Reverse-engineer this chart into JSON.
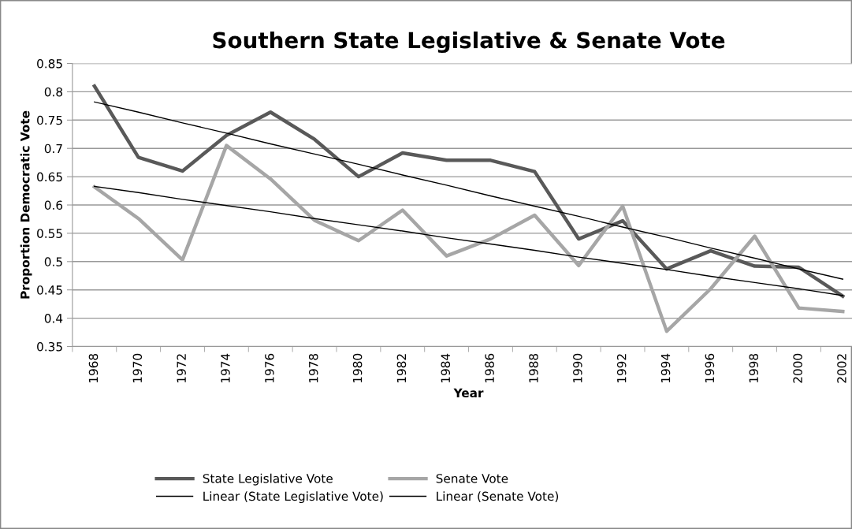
{
  "chart_data": {
    "type": "line",
    "title": "Southern State Legislative & Senate Vote",
    "xlabel": "Year",
    "ylabel": "Proportion Democratic Vote",
    "categories": [
      "1968",
      "1970",
      "1972",
      "1974",
      "1976",
      "1978",
      "1980",
      "1982",
      "1984",
      "1986",
      "1988",
      "1990",
      "1992",
      "1994",
      "1996",
      "1998",
      "2000",
      "2002"
    ],
    "series": [
      {
        "name": "State Legislative Vote",
        "color": "#595959",
        "values": [
          0.81,
          0.684,
          0.66,
          0.723,
          0.764,
          0.716,
          0.65,
          0.692,
          0.679,
          0.679,
          0.659,
          0.54,
          0.572,
          0.487,
          0.519,
          0.492,
          0.49,
          0.439
        ]
      },
      {
        "name": "Senate Vote",
        "color": "#a6a6a6",
        "values": [
          0.632,
          0.576,
          0.503,
          0.705,
          0.646,
          0.573,
          0.537,
          0.591,
          0.51,
          0.54,
          0.582,
          0.493,
          0.598,
          0.377,
          0.452,
          0.545,
          0.418,
          0.412
        ]
      },
      {
        "name": "Linear (State Legislative Vote)",
        "color": "#000000",
        "values": [
          0.782,
          0.764,
          0.745,
          0.727,
          0.708,
          0.69,
          0.672,
          0.653,
          0.635,
          0.616,
          0.598,
          0.58,
          0.561,
          0.543,
          0.524,
          0.506,
          0.487,
          0.469
        ]
      },
      {
        "name": "Linear (Senate Vote)",
        "color": "#000000",
        "values": [
          0.633,
          0.622,
          0.61,
          0.599,
          0.588,
          0.576,
          0.565,
          0.554,
          0.542,
          0.531,
          0.52,
          0.508,
          0.497,
          0.486,
          0.474,
          0.463,
          0.452,
          0.44
        ]
      }
    ],
    "ylim": [
      0.35,
      0.85
    ],
    "yticks": [
      {
        "value": 0.35,
        "label": "0.35"
      },
      {
        "value": 0.4,
        "label": "0.4"
      },
      {
        "value": 0.45,
        "label": "0.45"
      },
      {
        "value": 0.5,
        "label": "0.5"
      },
      {
        "value": 0.55,
        "label": "0.55"
      },
      {
        "value": 0.6,
        "label": "0.6"
      },
      {
        "value": 0.65,
        "label": "0.65"
      },
      {
        "value": 0.7,
        "label": "0.7"
      },
      {
        "value": 0.75,
        "label": "0.75"
      },
      {
        "value": 0.8,
        "label": "0.8"
      },
      {
        "value": 0.85,
        "label": "0.85"
      }
    ],
    "grid": "y",
    "legend": "bottom",
    "marker": "none",
    "line_style": "solid"
  }
}
